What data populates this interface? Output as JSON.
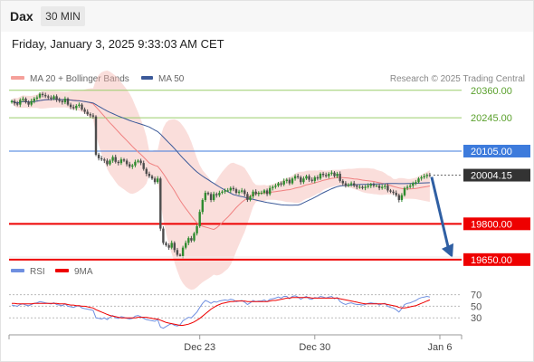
{
  "header": {
    "instrument": "Dax",
    "timeframe": "30 MIN"
  },
  "datetime": "Friday, January 3, 2025 9:33:03 AM CET",
  "copyright": "Research © 2025 Trading Central",
  "colors": {
    "candle_up": "#2e8b2e",
    "candle_down": "#4d4d4d",
    "bollinger": "#f5b5b0",
    "ma20": "#f08080",
    "ma50": "#3c5a99",
    "resistance_green": "#9acd6a",
    "level_blue": "#3d7bdc",
    "support_red": "#ee0000",
    "rsi": "#6f8fe0",
    "rsi_ma": "#ee0000",
    "arrow": "#2f5fa3"
  },
  "chart_data": [
    {
      "type": "candlestick",
      "legend": [
        "MA 20 + Bollinger Bands",
        "MA 50"
      ],
      "x_ticks": [
        "Dec 23",
        "Dec 30",
        "Jan 6"
      ],
      "ylim": [
        19600,
        20420
      ],
      "levels": [
        {
          "label": "20360.00",
          "value": 20360,
          "kind": "resistance"
        },
        {
          "label": "20245.00",
          "value": 20245,
          "kind": "resistance"
        },
        {
          "label": "20105.00",
          "value": 20105,
          "kind": "pivot"
        },
        {
          "label": "20004.15",
          "value": 20004.15,
          "kind": "last"
        },
        {
          "label": "19800.00",
          "value": 19800,
          "kind": "support"
        },
        {
          "label": "19650.00",
          "value": 19650,
          "kind": "support"
        }
      ],
      "close": [
        20315,
        20305,
        20300,
        20320,
        20325,
        20310,
        20300,
        20315,
        20325,
        20330,
        20345,
        20340,
        20335,
        20330,
        20325,
        20335,
        20320,
        20315,
        20310,
        20325,
        20300,
        20290,
        20285,
        20295,
        20300,
        20280,
        20270,
        20260,
        20255,
        20250,
        20090,
        20075,
        20070,
        20065,
        20050,
        20065,
        20080,
        20060,
        20055,
        20070,
        20065,
        20050,
        20040,
        20045,
        20060,
        20065,
        20055,
        20030,
        20010,
        20000,
        19990,
        19975,
        19990,
        19780,
        19720,
        19710,
        19700,
        19720,
        19690,
        19670,
        19665,
        19700,
        19720,
        19740,
        19730,
        19760,
        19790,
        19850,
        19900,
        19930,
        19925,
        19900,
        19925,
        19920,
        19930,
        19935,
        19940,
        19940,
        19950,
        19945,
        19930,
        19935,
        19940,
        19925,
        19900,
        19915,
        19935,
        19925,
        19930,
        19930,
        19940,
        19925,
        19950,
        19955,
        19960,
        19970,
        19965,
        19980,
        19985,
        19970,
        19990,
        20000,
        19995,
        19975,
        19990,
        20000,
        19985,
        19980,
        19995,
        19990,
        20010,
        20005,
        20000,
        20010,
        20015,
        20000,
        20010,
        19980,
        19970,
        19960,
        19965,
        19970,
        19960,
        19955,
        19955,
        19950,
        19955,
        19960,
        19965,
        19960,
        19960,
        19950,
        19955,
        19960,
        19940,
        19935,
        19930,
        19920,
        19900,
        19920,
        19950,
        19955,
        19960,
        19970,
        19975,
        19990,
        19995,
        20000,
        20005,
        20004
      ]
    },
    {
      "type": "line",
      "legend": [
        "RSI",
        "9MA"
      ],
      "y_ticks": [
        70,
        50,
        30
      ],
      "ylim": [
        10,
        85
      ],
      "rsi": [
        52,
        51,
        50,
        53,
        54,
        52,
        51,
        53,
        55,
        56,
        58,
        57,
        56,
        55,
        54,
        56,
        53,
        52,
        51,
        54,
        50,
        49,
        48,
        50,
        51,
        47,
        46,
        45,
        44,
        43,
        30,
        29,
        28,
        30,
        27,
        31,
        34,
        30,
        29,
        32,
        31,
        29,
        28,
        29,
        33,
        34,
        32,
        29,
        27,
        26,
        25,
        24,
        27,
        14,
        12,
        15,
        18,
        20,
        17,
        16,
        18,
        25,
        28,
        31,
        30,
        35,
        40,
        48,
        55,
        60,
        58,
        55,
        58,
        57,
        59,
        60,
        61,
        60,
        62,
        61,
        58,
        59,
        60,
        57,
        53,
        56,
        60,
        58,
        59,
        59,
        61,
        58,
        62,
        63,
        64,
        66,
        64,
        67,
        67,
        63,
        67,
        68,
        66,
        62,
        65,
        67,
        63,
        62,
        65,
        64,
        67,
        66,
        64,
        66,
        67,
        63,
        65,
        58,
        55,
        53,
        55,
        56,
        54,
        53,
        53,
        52,
        53,
        55,
        56,
        55,
        55,
        52,
        54,
        55,
        50,
        48,
        47,
        44,
        40,
        46,
        53,
        55,
        56,
        58,
        60,
        63,
        65,
        66,
        67,
        66
      ],
      "rsi_ma": [
        55,
        55,
        54,
        54,
        54,
        54,
        54,
        54,
        55,
        55,
        55,
        55,
        55,
        55,
        55,
        55,
        55,
        54,
        54,
        54,
        53,
        52,
        52,
        51,
        51,
        50,
        50,
        49,
        48,
        47,
        44,
        42,
        40,
        38,
        36,
        34,
        33,
        32,
        31,
        30,
        30,
        30,
        30,
        30,
        30,
        31,
        31,
        31,
        31,
        30,
        29,
        28,
        28,
        26,
        24,
        22,
        21,
        20,
        19,
        18,
        17,
        17,
        18,
        19,
        21,
        23,
        26,
        29,
        33,
        37,
        41,
        45,
        48,
        51,
        53,
        55,
        56,
        57,
        58,
        58,
        59,
        59,
        59,
        59,
        58,
        58,
        58,
        58,
        58,
        58,
        58,
        58,
        59,
        60,
        60,
        61,
        62,
        63,
        64,
        64,
        65,
        65,
        65,
        65,
        65,
        65,
        65,
        64,
        64,
        64,
        64,
        64,
        64,
        64,
        64,
        64,
        64,
        63,
        62,
        61,
        60,
        59,
        58,
        57,
        56,
        55,
        54,
        54,
        54,
        54,
        54,
        54,
        54,
        54,
        53,
        52,
        51,
        50,
        48,
        47,
        47,
        48,
        49,
        50,
        51,
        53,
        55,
        57,
        59,
        61
      ]
    }
  ]
}
